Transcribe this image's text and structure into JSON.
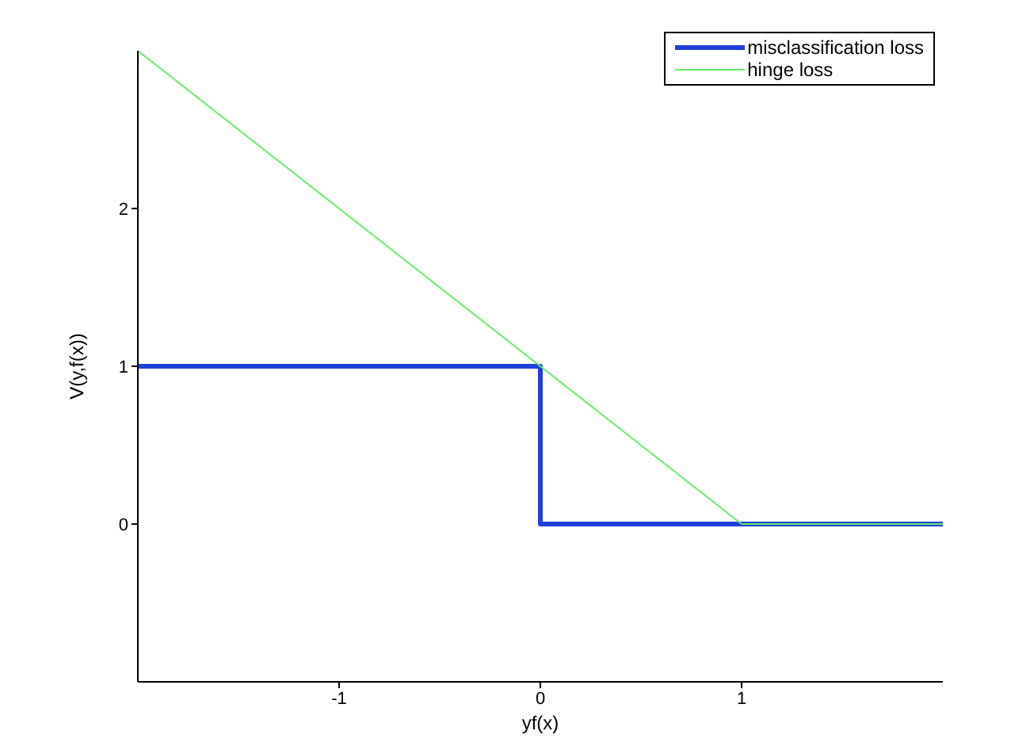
{
  "chart_data": {
    "type": "line",
    "xlabel": "yf(x)",
    "ylabel": "V(y,f(x))",
    "series": [
      {
        "name": "misclassification loss",
        "color": "#1f3fdd",
        "x": [
          -2,
          0,
          0,
          2
        ],
        "values": [
          1,
          1,
          0,
          0
        ]
      },
      {
        "name": "hinge loss",
        "color": "#66ee66",
        "x": [
          -2,
          1,
          2
        ],
        "values": [
          3,
          0,
          0
        ]
      }
    ],
    "xlim": [
      -2,
      2
    ],
    "xticks": [
      -1,
      0,
      1
    ],
    "ylim": [
      -1,
      3
    ],
    "yticks": [
      0,
      1,
      2
    ],
    "legend": "top right",
    "grid": false,
    "marker": "none",
    "line_style": "solid"
  }
}
